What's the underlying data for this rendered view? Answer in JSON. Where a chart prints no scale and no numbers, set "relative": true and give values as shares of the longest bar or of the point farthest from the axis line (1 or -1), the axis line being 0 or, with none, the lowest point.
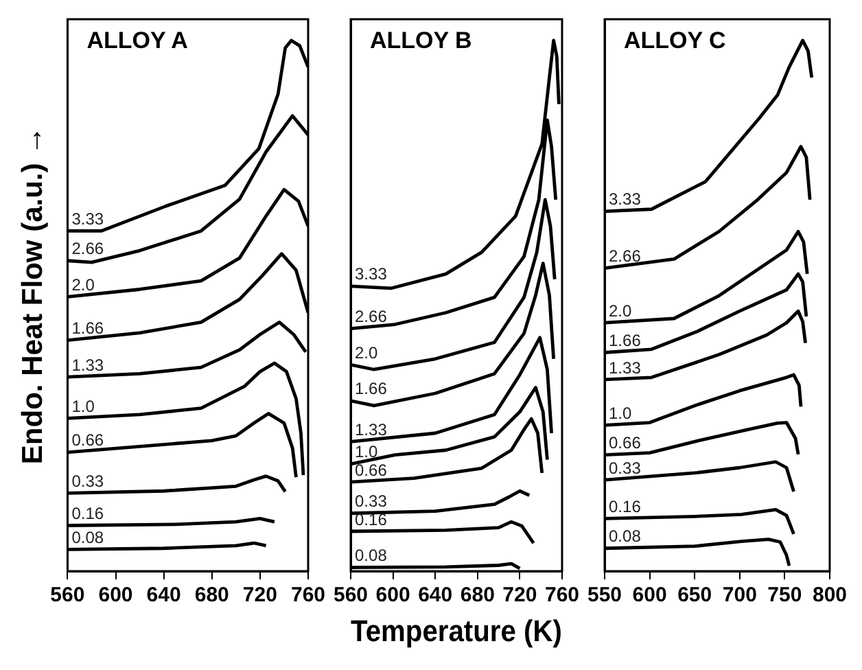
{
  "chart_data": [
    {
      "type": "line",
      "title": "ALLOY A",
      "ylabel": "Endo. Heat Flow (a.u.) →",
      "relative": true,
      "xlim": [
        560,
        760
      ],
      "xticks": [
        560,
        600,
        640,
        680,
        720,
        760
      ],
      "legend": false,
      "series": [
        {
          "name": "0.08",
          "color": "#000000",
          "x": [
            560,
            640,
            700,
            715,
            725
          ],
          "values": [
            0.041,
            0.043,
            0.048,
            0.053,
            0.048
          ]
        },
        {
          "name": "0.16",
          "color": "#000000",
          "x": [
            560,
            650,
            700,
            720,
            732
          ],
          "values": [
            0.086,
            0.088,
            0.093,
            0.099,
            0.093
          ]
        },
        {
          "name": "0.33",
          "color": "#000000",
          "x": [
            560,
            640,
            700,
            715,
            725,
            735,
            741
          ],
          "values": [
            0.147,
            0.151,
            0.16,
            0.172,
            0.179,
            0.17,
            0.15
          ]
        },
        {
          "name": "0.66",
          "color": "#000000",
          "x": [
            560,
            620,
            680,
            700,
            715,
            727,
            740,
            747,
            750
          ],
          "values": [
            0.224,
            0.235,
            0.246,
            0.255,
            0.279,
            0.297,
            0.279,
            0.232,
            0.177
          ]
        },
        {
          "name": "1.0",
          "color": "#000000",
          "x": [
            560,
            620,
            671,
            707,
            720,
            732,
            742,
            750,
            754,
            756
          ],
          "values": [
            0.288,
            0.295,
            0.307,
            0.348,
            0.376,
            0.392,
            0.376,
            0.325,
            0.26,
            0.181
          ]
        },
        {
          "name": "1.33",
          "color": "#000000",
          "x": [
            560,
            620,
            671,
            703,
            720,
            736,
            748,
            758
          ],
          "values": [
            0.366,
            0.372,
            0.384,
            0.417,
            0.446,
            0.469,
            0.446,
            0.413
          ]
        },
        {
          "name": "1.66",
          "color": "#000000",
          "x": [
            560,
            620,
            671,
            703,
            722,
            738,
            750,
            760
          ],
          "values": [
            0.435,
            0.449,
            0.469,
            0.512,
            0.557,
            0.598,
            0.567,
            0.487
          ]
        },
        {
          "name": "2.0",
          "color": "#000000",
          "x": [
            560,
            620,
            671,
            703,
            725,
            740,
            752,
            760
          ],
          "values": [
            0.517,
            0.531,
            0.547,
            0.59,
            0.669,
            0.719,
            0.697,
            0.65
          ]
        },
        {
          "name": "2.66",
          "color": "#000000",
          "x": [
            560,
            580,
            620,
            671,
            703,
            725,
            747,
            760
          ],
          "values": [
            0.585,
            0.582,
            0.604,
            0.641,
            0.701,
            0.79,
            0.858,
            0.822
          ]
        },
        {
          "name": "3.33",
          "color": "#000000",
          "x": [
            560,
            588,
            642,
            691,
            719,
            735,
            741,
            746,
            753,
            760
          ],
          "values": [
            0.641,
            0.641,
            0.688,
            0.727,
            0.796,
            0.899,
            0.986,
            1,
            0.99,
            0.95
          ]
        }
      ]
    },
    {
      "type": "line",
      "title": "ALLOY B",
      "xlabel": "Temperature (K)",
      "relative": true,
      "xlim": [
        560,
        760
      ],
      "xticks": [
        560,
        600,
        640,
        680,
        720,
        760
      ],
      "legend": false,
      "series": [
        {
          "name": "0.08",
          "color": "#000000",
          "x": [
            560,
            650,
            700,
            712,
            720
          ],
          "values": [
            0.007,
            0.008,
            0.011,
            0.014,
            0.005
          ]
        },
        {
          "name": "0.16",
          "color": "#000000",
          "x": [
            560,
            650,
            700,
            712,
            722,
            733
          ],
          "values": [
            0.075,
            0.077,
            0.082,
            0.093,
            0.085,
            0.053
          ]
        },
        {
          "name": "0.33",
          "color": "#000000",
          "x": [
            560,
            640,
            696,
            710,
            720,
            729
          ],
          "values": [
            0.109,
            0.113,
            0.126,
            0.14,
            0.151,
            0.143
          ]
        },
        {
          "name": "0.66",
          "color": "#000000",
          "x": [
            560,
            620,
            684,
            712,
            725,
            731,
            737,
            741
          ],
          "values": [
            0.168,
            0.175,
            0.194,
            0.228,
            0.27,
            0.287,
            0.26,
            0.185
          ]
        },
        {
          "name": "1.0",
          "color": "#000000",
          "x": [
            560,
            602,
            650,
            696,
            720,
            735,
            742,
            746
          ],
          "values": [
            0.202,
            0.219,
            0.228,
            0.253,
            0.3,
            0.346,
            0.3,
            0.21
          ]
        },
        {
          "name": "1.33",
          "color": "#000000",
          "x": [
            560,
            640,
            696,
            720,
            739,
            746,
            750
          ],
          "values": [
            0.244,
            0.26,
            0.295,
            0.37,
            0.44,
            0.38,
            0.26
          ]
        },
        {
          "name": "1.66",
          "color": "#000000",
          "x": [
            560,
            582,
            640,
            696,
            724,
            735,
            742,
            748,
            752
          ],
          "values": [
            0.321,
            0.312,
            0.335,
            0.372,
            0.448,
            0.52,
            0.58,
            0.52,
            0.4
          ]
        },
        {
          "name": "2.0",
          "color": "#000000",
          "x": [
            560,
            582,
            640,
            696,
            724,
            736,
            744,
            749,
            753
          ],
          "values": [
            0.389,
            0.38,
            0.4,
            0.431,
            0.516,
            0.6,
            0.7,
            0.65,
            0.55
          ]
        },
        {
          "name": "2.66",
          "color": "#000000",
          "x": [
            560,
            602,
            650,
            696,
            724,
            738,
            746,
            750,
            754
          ],
          "values": [
            0.457,
            0.465,
            0.487,
            0.516,
            0.593,
            0.7,
            0.85,
            0.8,
            0.7
          ]
        },
        {
          "name": "3.33",
          "color": "#000000",
          "x": [
            560,
            598,
            650,
            684,
            716,
            741,
            748,
            752,
            755,
            757
          ],
          "values": [
            0.537,
            0.533,
            0.56,
            0.601,
            0.669,
            0.805,
            0.93,
            1,
            0.97,
            0.88
          ]
        }
      ]
    },
    {
      "type": "line",
      "title": "ALLOY C",
      "relative": true,
      "xlim": [
        550,
        800
      ],
      "xticks": [
        550,
        600,
        650,
        700,
        750,
        800
      ],
      "legend": false,
      "series": [
        {
          "name": "0.08",
          "color": "#000000",
          "x": [
            550,
            650,
            702,
            732,
            745,
            752,
            755
          ],
          "values": [
            0.043,
            0.047,
            0.056,
            0.06,
            0.055,
            0.03,
            0.01
          ]
        },
        {
          "name": "0.16",
          "color": "#000000",
          "x": [
            550,
            650,
            702,
            740,
            752,
            760
          ],
          "values": [
            0.099,
            0.103,
            0.107,
            0.116,
            0.105,
            0.07
          ]
        },
        {
          "name": "0.33",
          "color": "#000000",
          "x": [
            550,
            650,
            700,
            740,
            752,
            760
          ],
          "values": [
            0.172,
            0.185,
            0.195,
            0.206,
            0.195,
            0.15
          ]
        },
        {
          "name": "0.66",
          "color": "#000000",
          "x": [
            550,
            600,
            652,
            707,
            742,
            752,
            762,
            765
          ],
          "values": [
            0.219,
            0.223,
            0.245,
            0.266,
            0.279,
            0.28,
            0.25,
            0.22
          ]
        },
        {
          "name": "1.0",
          "color": "#000000",
          "x": [
            550,
            600,
            652,
            700,
            752,
            760,
            766,
            768
          ],
          "values": [
            0.275,
            0.28,
            0.313,
            0.34,
            0.365,
            0.37,
            0.35,
            0.31
          ]
        },
        {
          "name": "1.33",
          "color": "#000000",
          "x": [
            550,
            602,
            677,
            730,
            752,
            765,
            770,
            773
          ],
          "values": [
            0.361,
            0.365,
            0.408,
            0.445,
            0.468,
            0.49,
            0.47,
            0.43
          ]
        },
        {
          "name": "1.66",
          "color": "#000000",
          "x": [
            550,
            602,
            652,
            700,
            752,
            765,
            770,
            774
          ],
          "values": [
            0.412,
            0.418,
            0.451,
            0.49,
            0.53,
            0.56,
            0.545,
            0.48
          ]
        },
        {
          "name": "2.0",
          "color": "#000000",
          "x": [
            550,
            627,
            677,
            752,
            765,
            771,
            775
          ],
          "values": [
            0.468,
            0.476,
            0.519,
            0.605,
            0.64,
            0.62,
            0.56
          ]
        },
        {
          "name": "2.66",
          "color": "#000000",
          "x": [
            550,
            627,
            677,
            720,
            752,
            768,
            774,
            778
          ],
          "values": [
            0.571,
            0.588,
            0.64,
            0.7,
            0.751,
            0.8,
            0.78,
            0.7
          ]
        },
        {
          "name": "3.33",
          "color": "#000000",
          "x": [
            550,
            602,
            662,
            722,
            742,
            755,
            770,
            776,
            780
          ],
          "values": [
            0.678,
            0.682,
            0.734,
            0.854,
            0.897,
            0.95,
            1,
            0.98,
            0.93
          ]
        }
      ]
    }
  ]
}
